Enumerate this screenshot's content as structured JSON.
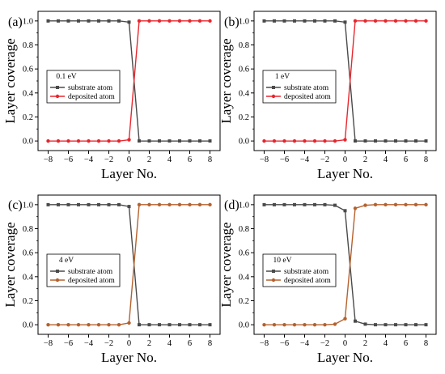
{
  "chart_data": [
    {
      "type": "line",
      "panel_label": "(a)",
      "legend_title": "0.1 eV",
      "xlabel": "Layer No.",
      "ylabel": "Layer coverage",
      "xlim": [
        -9,
        9
      ],
      "ylim": [
        -0.08,
        1.08
      ],
      "xticks": [
        -8,
        -6,
        -4,
        -2,
        0,
        2,
        4,
        6,
        8
      ],
      "yticks": [
        "0.0",
        "0.2",
        "0.4",
        "0.6",
        "0.8",
        "1.0"
      ],
      "legend_position": "center-left",
      "x": [
        -8,
        -7,
        -6,
        -5,
        -4,
        -3,
        -2,
        -1,
        0,
        1,
        2,
        3,
        4,
        5,
        6,
        7,
        8
      ],
      "series": [
        {
          "name": "substrate atom",
          "color": "#4a4a4a",
          "marker": "square",
          "values": [
            1,
            1,
            1,
            1,
            1,
            1,
            1,
            1,
            0.99,
            0,
            0,
            0,
            0,
            0,
            0,
            0,
            0
          ]
        },
        {
          "name": "deposited atom",
          "color": "#e8262d",
          "marker": "circle",
          "values": [
            0,
            0,
            0,
            0,
            0,
            0,
            0,
            0,
            0.01,
            1,
            1,
            1,
            1,
            1,
            1,
            1,
            1
          ]
        }
      ]
    },
    {
      "type": "line",
      "panel_label": "(b)",
      "legend_title": "1 eV",
      "xlabel": "Layer No.",
      "ylabel": "Layer coverage",
      "xlim": [
        -9,
        9
      ],
      "ylim": [
        -0.08,
        1.08
      ],
      "xticks": [
        -8,
        -6,
        -4,
        -2,
        0,
        2,
        4,
        6,
        8
      ],
      "yticks": [
        "0.0",
        "0.2",
        "0.4",
        "0.6",
        "0.8",
        "1.0"
      ],
      "legend_position": "center-right",
      "x": [
        -8,
        -7,
        -6,
        -5,
        -4,
        -3,
        -2,
        -1,
        0,
        1,
        2,
        3,
        4,
        5,
        6,
        7,
        8
      ],
      "series": [
        {
          "name": "substrate atom",
          "color": "#4a4a4a",
          "marker": "square",
          "values": [
            1,
            1,
            1,
            1,
            1,
            1,
            1,
            1,
            0.99,
            0,
            0,
            0,
            0,
            0,
            0,
            0,
            0
          ]
        },
        {
          "name": "deposited atom",
          "color": "#e8262d",
          "marker": "circle",
          "values": [
            0,
            0,
            0,
            0,
            0,
            0,
            0,
            0,
            0.01,
            1,
            1,
            1,
            1,
            1,
            1,
            1,
            1
          ]
        }
      ]
    },
    {
      "type": "line",
      "panel_label": "(c)",
      "legend_title": "4 eV",
      "xlabel": "Layer No.",
      "ylabel": "Layer coverage",
      "xlim": [
        -9,
        9
      ],
      "ylim": [
        -0.08,
        1.08
      ],
      "xticks": [
        -8,
        -6,
        -4,
        -2,
        0,
        2,
        4,
        6,
        8
      ],
      "yticks": [
        "0.0",
        "0.2",
        "0.4",
        "0.6",
        "0.8",
        "1.0"
      ],
      "legend_position": "center-left",
      "x": [
        -8,
        -7,
        -6,
        -5,
        -4,
        -3,
        -2,
        -1,
        0,
        1,
        2,
        3,
        4,
        5,
        6,
        7,
        8
      ],
      "series": [
        {
          "name": "substrate atom",
          "color": "#4a4a4a",
          "marker": "square",
          "values": [
            1,
            1,
            1,
            1,
            1,
            1,
            1,
            1,
            0.985,
            0,
            0,
            0,
            0,
            0,
            0,
            0,
            0
          ]
        },
        {
          "name": "deposited atom",
          "color": "#b5612d",
          "marker": "circle",
          "values": [
            0,
            0,
            0,
            0,
            0,
            0,
            0,
            0,
            0.015,
            1,
            1,
            1,
            1,
            1,
            1,
            1,
            1
          ]
        }
      ]
    },
    {
      "type": "line",
      "panel_label": "(d)",
      "legend_title": "10 eV",
      "xlabel": "Layer No.",
      "ylabel": "Layer coverage",
      "xlim": [
        -9,
        9
      ],
      "ylim": [
        -0.08,
        1.08
      ],
      "xticks": [
        -8,
        -6,
        -4,
        -2,
        0,
        2,
        4,
        6,
        8
      ],
      "yticks": [
        "0.0",
        "0.2",
        "0.4",
        "0.6",
        "0.8",
        "1.0"
      ],
      "legend_position": "center-right",
      "x": [
        -8,
        -7,
        -6,
        -5,
        -4,
        -3,
        -2,
        -1,
        0,
        1,
        2,
        3,
        4,
        5,
        6,
        7,
        8
      ],
      "series": [
        {
          "name": "substrate atom",
          "color": "#4a4a4a",
          "marker": "square",
          "values": [
            1,
            1,
            1,
            1,
            1,
            1,
            1,
            0.995,
            0.95,
            0.03,
            0.005,
            0,
            0,
            0,
            0,
            0,
            0
          ]
        },
        {
          "name": "deposited atom",
          "color": "#b5612d",
          "marker": "circle",
          "values": [
            0,
            0,
            0,
            0,
            0,
            0,
            0,
            0.005,
            0.05,
            0.97,
            0.995,
            1,
            1,
            1,
            1,
            1,
            1
          ]
        }
      ]
    }
  ]
}
